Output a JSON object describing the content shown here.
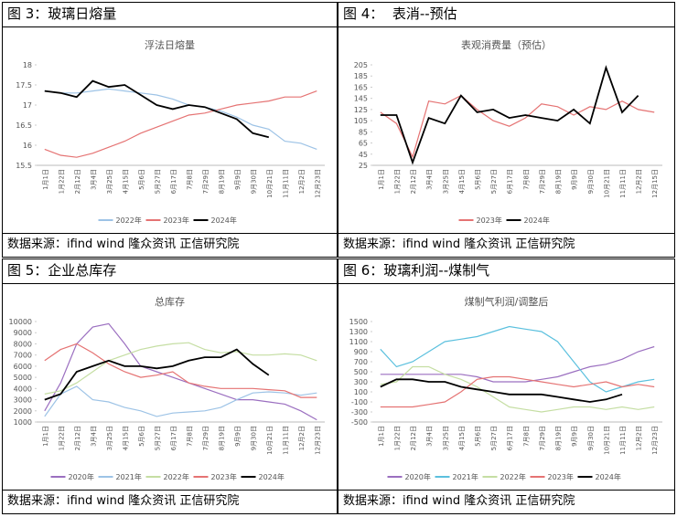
{
  "panels": [
    {
      "title": "图 3：玻璃日熔量",
      "source": "数据来源：ifind wind  隆众资讯  正信研究院"
    },
    {
      "title": "图 4：  表消--预估",
      "source": "数据来源：ifind wind  隆众资讯  正信研究院"
    },
    {
      "title": "图 5：企业总库存",
      "source": "数据来源：ifind wind  隆众资讯  正信研究院"
    },
    {
      "title": "图 6：玻璃利润--煤制气",
      "source": "数据来源：ifind wind  隆众资讯  正信研究院"
    }
  ],
  "chart_data": [
    {
      "type": "line",
      "title": "浮法日熔量",
      "categories": [
        "1月1日",
        "1月22日",
        "2月12日",
        "3月4日",
        "3月25日",
        "4月15日",
        "5月6日",
        "5月27日",
        "6月17日",
        "7月8日",
        "7月29日",
        "8月19日",
        "9月9日",
        "9月30日",
        "10月21日",
        "11月11日",
        "12月2日",
        "12月23日"
      ],
      "ylim": [
        15.5,
        18
      ],
      "yticks": [
        15.5,
        16,
        16.5,
        17,
        17.5,
        18
      ],
      "series": [
        {
          "name": "2022年",
          "color": "#9dc3e6",
          "values": [
            17.35,
            17.3,
            17.3,
            17.35,
            17.4,
            17.35,
            17.3,
            17.25,
            17.15,
            17.0,
            16.95,
            16.85,
            16.7,
            16.5,
            16.4,
            16.1,
            16.05,
            15.9
          ]
        },
        {
          "name": "2023年",
          "color": "#e57373",
          "values": [
            15.9,
            15.75,
            15.7,
            15.8,
            15.95,
            16.1,
            16.3,
            16.45,
            16.6,
            16.75,
            16.8,
            16.9,
            17.0,
            17.05,
            17.1,
            17.2,
            17.2,
            17.35
          ]
        },
        {
          "name": "2024年",
          "color": "#000000",
          "values": [
            17.35,
            17.3,
            17.2,
            17.6,
            17.45,
            17.5,
            17.25,
            17.0,
            16.9,
            17.0,
            16.95,
            16.8,
            16.65,
            16.3,
            16.2,
            null,
            null,
            null
          ]
        }
      ]
    },
    {
      "type": "line",
      "title": "表观消费量（预估）",
      "categories": [
        "1月1日",
        "1月22日",
        "2月12日",
        "3月4日",
        "3月25日",
        "4月15日",
        "5月6日",
        "5月27日",
        "6月17日",
        "7月8日",
        "7月29日",
        "8月19日",
        "9月9日",
        "9月30日",
        "10月21日",
        "11月11日",
        "12月2日",
        "12月15日"
      ],
      "ylim": [
        25,
        205
      ],
      "yticks": [
        25,
        45,
        65,
        85,
        105,
        125,
        145,
        165,
        185,
        205
      ],
      "series": [
        {
          "name": "2023年",
          "color": "#e57373",
          "values": [
            120,
            100,
            40,
            140,
            135,
            150,
            125,
            105,
            95,
            110,
            135,
            130,
            115,
            130,
            125,
            140,
            125,
            120
          ]
        },
        {
          "name": "2024年",
          "color": "#000000",
          "values": [
            115,
            115,
            30,
            110,
            100,
            150,
            120,
            125,
            110,
            115,
            110,
            105,
            125,
            100,
            200,
            120,
            150,
            null
          ]
        }
      ]
    },
    {
      "type": "line",
      "title": "总库存",
      "categories": [
        "1月1日",
        "1月22日",
        "2月12日",
        "3月4日",
        "3月25日",
        "4月15日",
        "5月6日",
        "5月27日",
        "6月17日",
        "7月8日",
        "7月29日",
        "8月19日",
        "9月9日",
        "9月30日",
        "10月21日",
        "11月11日",
        "12月2日",
        "12月23日"
      ],
      "ylim": [
        1000,
        10000
      ],
      "yticks": [
        1000,
        2000,
        3000,
        4000,
        5000,
        6000,
        7000,
        8000,
        9000,
        10000
      ],
      "series": [
        {
          "name": "2020年",
          "color": "#9b6fc0",
          "values": [
            2000,
            4500,
            8000,
            9500,
            9800,
            8000,
            6000,
            5500,
            5000,
            4500,
            4000,
            3500,
            3000,
            3000,
            2800,
            2600,
            2000,
            1200
          ]
        },
        {
          "name": "2021年",
          "color": "#9dc3e6",
          "values": [
            1500,
            3500,
            4200,
            3000,
            2800,
            2300,
            2000,
            1500,
            1800,
            1900,
            2000,
            2300,
            3000,
            3600,
            3700,
            3600,
            3400,
            3600
          ]
        },
        {
          "name": "2022年",
          "color": "#c5dea3",
          "values": [
            3500,
            3800,
            4500,
            5500,
            6500,
            7000,
            7500,
            7800,
            8000,
            8100,
            7500,
            7200,
            7300,
            7000,
            7000,
            7100,
            7000,
            6500
          ]
        },
        {
          "name": "2023年",
          "color": "#e57373",
          "values": [
            6500,
            7500,
            8000,
            7200,
            6200,
            5500,
            5000,
            5200,
            5500,
            4500,
            4200,
            4000,
            4000,
            4000,
            3900,
            3800,
            3200,
            3200
          ]
        },
        {
          "name": "2024年",
          "color": "#000000",
          "values": [
            3000,
            3500,
            5500,
            6000,
            6500,
            6000,
            6000,
            5800,
            6000,
            6500,
            6800,
            6800,
            7500,
            6200,
            5200,
            null,
            null,
            null
          ]
        }
      ]
    },
    {
      "type": "line",
      "title": "煤制气利润/调整后",
      "categories": [
        "1月1日",
        "1月22日",
        "2月12日",
        "3月4日",
        "3月25日",
        "4月15日",
        "5月6日",
        "5月27日",
        "6月17日",
        "7月8日",
        "7月29日",
        "8月19日",
        "9月9日",
        "9月30日",
        "10月21日",
        "11月11日",
        "12月2日",
        "12月23日"
      ],
      "ylim": [
        -500,
        1500
      ],
      "yticks": [
        -500,
        -300,
        -100,
        100,
        300,
        500,
        700,
        900,
        1100,
        1300,
        1500
      ],
      "series": [
        {
          "name": "2020年",
          "color": "#9b6fc0",
          "values": [
            450,
            450,
            450,
            450,
            450,
            450,
            400,
            300,
            300,
            300,
            350,
            400,
            500,
            600,
            650,
            750,
            900,
            1000
          ]
        },
        {
          "name": "2021年",
          "color": "#5bc0de",
          "values": [
            950,
            600,
            700,
            900,
            1100,
            1150,
            1200,
            1300,
            1400,
            1350,
            1300,
            1100,
            700,
            300,
            100,
            200,
            300,
            350
          ]
        },
        {
          "name": "2022年",
          "color": "#c5dea3",
          "values": [
            250,
            300,
            600,
            600,
            450,
            350,
            200,
            0,
            -200,
            -250,
            -300,
            -250,
            -200,
            -200,
            -250,
            -200,
            -250,
            -200
          ]
        },
        {
          "name": "2023年",
          "color": "#e57373",
          "values": [
            -200,
            -200,
            -200,
            -150,
            -100,
            100,
            350,
            400,
            400,
            350,
            300,
            250,
            200,
            250,
            300,
            200,
            250,
            200
          ]
        },
        {
          "name": "2024年",
          "color": "#000000",
          "values": [
            200,
            350,
            350,
            300,
            300,
            200,
            150,
            100,
            50,
            50,
            50,
            0,
            -50,
            -100,
            -50,
            50,
            null,
            null
          ]
        }
      ]
    }
  ]
}
